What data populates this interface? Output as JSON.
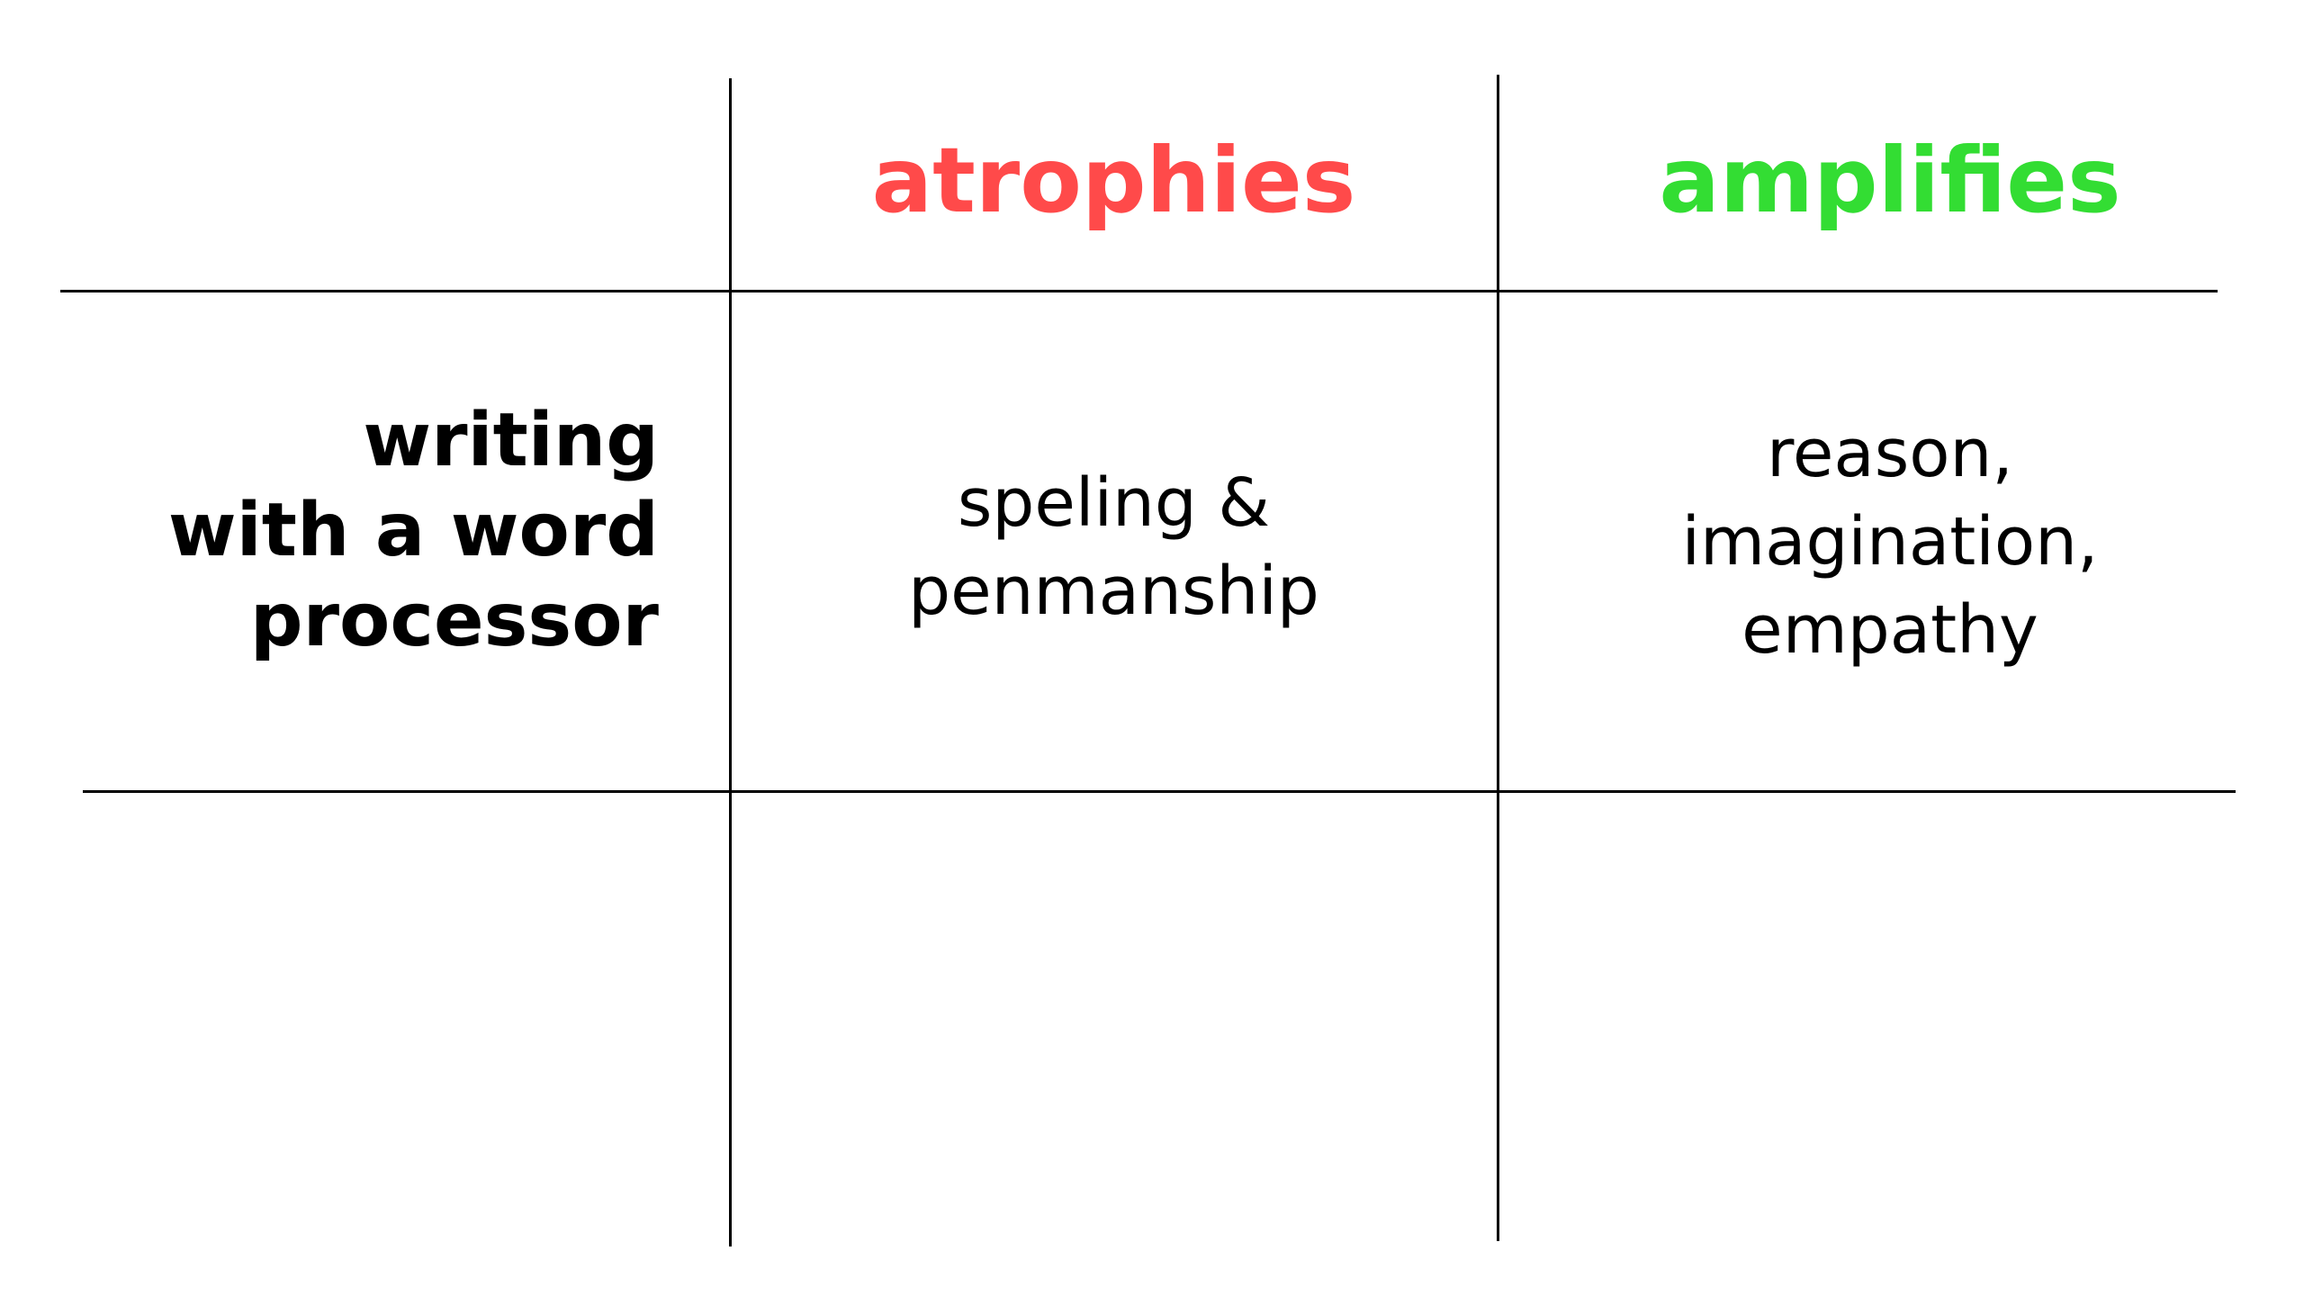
{
  "columns": {
    "atrophies": {
      "label": "atrophies",
      "color": "#ff4a4a"
    },
    "amplifies": {
      "label": "amplifies",
      "color": "#33dd33"
    }
  },
  "rows": [
    {
      "label_lines": [
        "writing",
        "with a word",
        "processor"
      ],
      "atrophies_lines": [
        "speling &",
        "penmanship"
      ],
      "amplifies_lines": [
        "reason,",
        "imagination,",
        "empathy"
      ]
    }
  ]
}
